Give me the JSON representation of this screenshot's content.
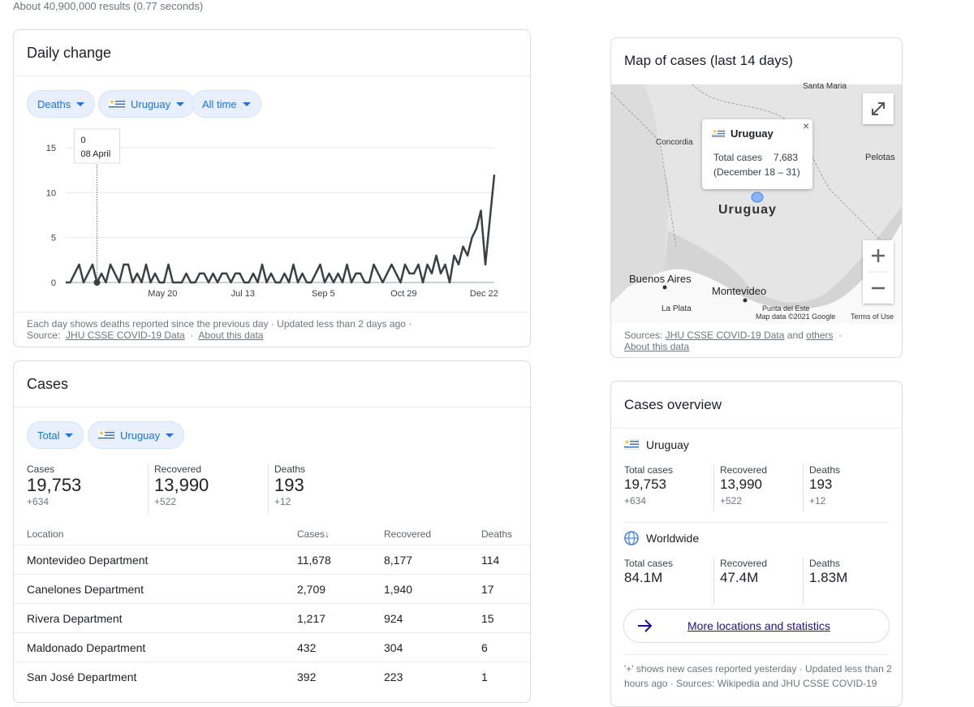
{
  "results_info": "About 40,900,000 results (0.77 seconds)",
  "daily_change": {
    "title": "Daily change",
    "filters": [
      "Deaths",
      "Uruguay",
      "All time"
    ],
    "chart_data": {
      "type": "line",
      "color": "#3c4043",
      "grid": true,
      "values": [
        0,
        0,
        1,
        2,
        0,
        1,
        2,
        0,
        1,
        0,
        2,
        1,
        0,
        2,
        2,
        0,
        1,
        0,
        2,
        0,
        1,
        0,
        0,
        2,
        0,
        0,
        0,
        1,
        0,
        0,
        1,
        1,
        0,
        1,
        0,
        1,
        1,
        0,
        1,
        1,
        0,
        0,
        1,
        0,
        2,
        0,
        1,
        0,
        0,
        1,
        0,
        2,
        0,
        1,
        0,
        0,
        1,
        2,
        0,
        1,
        0,
        1,
        0,
        2,
        0,
        1,
        1,
        0,
        0,
        2,
        1,
        0,
        1,
        2,
        1,
        0,
        2,
        1,
        1,
        2,
        0,
        2,
        1,
        3,
        1,
        2,
        0,
        3,
        2,
        4,
        3,
        5,
        6,
        8,
        2,
        7,
        12
      ],
      "xlim": [
        0,
        96
      ],
      "xticks": [
        {
          "value": 21.7,
          "label": "May 20"
        },
        {
          "value": 39.7,
          "label": "Jul 13"
        },
        {
          "value": 57.7,
          "label": "Sep 5"
        },
        {
          "value": 75.7,
          "label": "Oct 29"
        },
        {
          "value": 93.7,
          "label": "Dec 22"
        }
      ],
      "ylim": [
        0,
        15
      ],
      "yticks": [
        0,
        5,
        10,
        15
      ],
      "tooltip": {
        "date": "08 April"
      }
    },
    "footnote": "Each day shows deaths reported since the previous day · Updated less than 2 days ago ·",
    "source_label": "Source:",
    "source_link": "JHU CSSE COVID-19 Data",
    "about": "About this data"
  },
  "cases": {
    "title": "Cases",
    "filters": [
      "Total",
      "Uruguay"
    ],
    "stats": [
      {
        "label": "Cases",
        "value": "19,753",
        "change": "+634"
      },
      {
        "label": "Recovered",
        "value": "13,990",
        "change": "+522"
      },
      {
        "label": "Deaths",
        "value": "193",
        "change": "+12"
      }
    ],
    "table": {
      "header": [
        "Location",
        "Cases",
        "Recovered",
        "Deaths"
      ],
      "rows": [
        [
          "Montevideo Department",
          "11,678",
          "8,177",
          "114"
        ],
        [
          "Canelones Department",
          "2,709",
          "1,940",
          "17"
        ],
        [
          "Rivera Department",
          "1,217",
          "924",
          "15"
        ],
        [
          "Maldonado Department",
          "432",
          "304",
          "6"
        ],
        [
          "San José Department",
          "392",
          "223",
          "1"
        ]
      ]
    }
  },
  "map": {
    "title": "Map of cases (last 14 days)",
    "places": [
      "Santa Maria",
      "Concordia",
      "Pelotas",
      "Buenos Aires",
      "Montevideo",
      "La Plata",
      "Punta del Este"
    ],
    "country_label": "Uruguay",
    "popup": {
      "name": "Uruguay",
      "label": "Total cases",
      "value": "7,683",
      "period": "(December 18 – 31)"
    },
    "attribution": "Map data ©2021 Google",
    "terms": "Terms of Use",
    "sources_label": "Sources:",
    "source_link": "JHU CSSE COVID-19 Data",
    "and": "and",
    "others": "others",
    "about": "About this data"
  },
  "overview": {
    "title": "Cases overview",
    "groups": [
      {
        "name": "Uruguay",
        "stats": [
          {
            "label": "Total cases",
            "value": "19,753",
            "change": "+634"
          },
          {
            "label": "Recovered",
            "value": "13,990",
            "change": "+522"
          },
          {
            "label": "Deaths",
            "value": "193",
            "change": "+12"
          }
        ]
      },
      {
        "name": "Worldwide",
        "stats": [
          {
            "label": "Total cases",
            "value": "84.1M"
          },
          {
            "label": "Recovered",
            "value": "47.4M"
          },
          {
            "label": "Deaths",
            "value": "1.83M"
          }
        ]
      }
    ],
    "more_link": "More locations and statistics",
    "footnote": "'+' shows new cases reported yesterday · Updated less than 2 hours ago · Sources: Wikipedia and JHU CSSE COVID-19"
  }
}
